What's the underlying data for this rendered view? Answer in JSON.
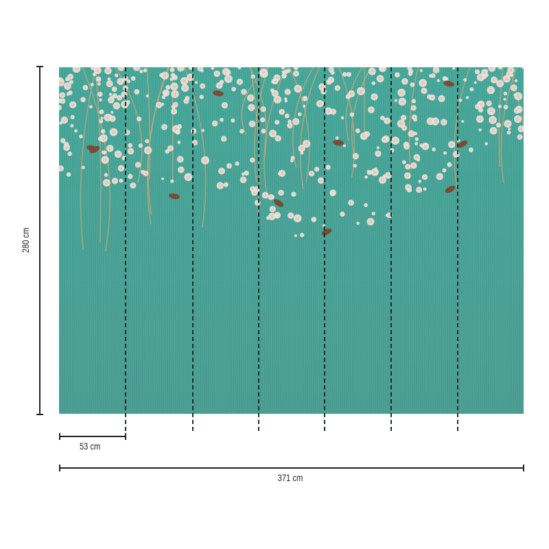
{
  "dimensions": {
    "height_label": "280 cm",
    "panel_width_label": "53 cm",
    "total_width_label": "371 cm"
  },
  "colors": {
    "background": "#48a497",
    "blossom": "#f3e4dc",
    "blossom_center": "#e7c7b8",
    "branch": "#c9a77c",
    "bird": "#7a4b32",
    "seam_line": "#1d2a2a",
    "dimension_line": "#222222"
  }
}
